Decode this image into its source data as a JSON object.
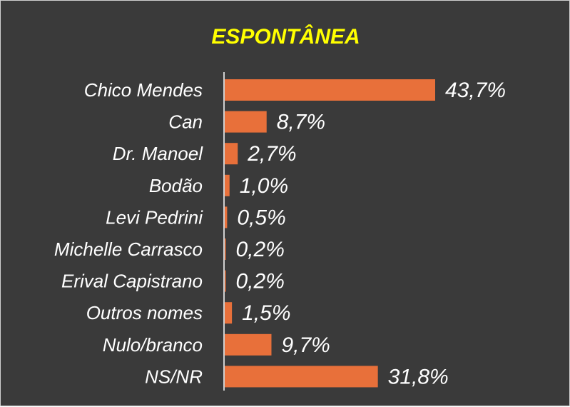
{
  "chart_data": {
    "type": "bar",
    "orientation": "horizontal",
    "title": "ESPONTÂNEA",
    "categories": [
      "Chico Mendes",
      "Can",
      "Dr. Manoel",
      "Bodão",
      "Levi Pedrini",
      "Michelle Carrasco",
      "Erival Capistrano",
      "Outros nomes",
      "Nulo/branco",
      "NS/NR"
    ],
    "values": [
      43.7,
      8.7,
      2.7,
      1.0,
      0.5,
      0.2,
      0.2,
      1.5,
      9.7,
      31.8
    ],
    "value_labels": [
      "43,7%",
      "8,7%",
      "2,7%",
      "1,0%",
      "0,5%",
      "0,2%",
      "0,2%",
      "1,5%",
      "9,7%",
      "31,8%"
    ],
    "xlabel": "",
    "ylabel": "",
    "grid": false,
    "legend": "none",
    "colors": {
      "bar": "#e8703a",
      "background": "#3a3a3a",
      "title": "#ffff00",
      "text": "#ffffff",
      "axis": "#cfcfcf"
    }
  }
}
